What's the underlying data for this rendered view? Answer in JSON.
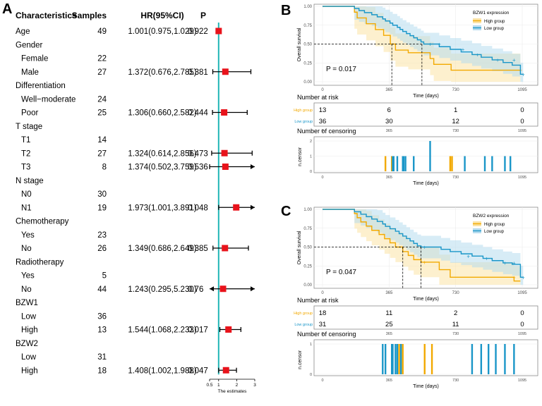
{
  "figure": {
    "panel_labels": [
      "A",
      "B",
      "C"
    ]
  },
  "colors": {
    "high": "#f2a900",
    "low": "#1a96c8",
    "high_band": "#fbe3a6",
    "low_band": "#b7dcef",
    "hr_box": "#e8131b",
    "ref_line": "#1fb5b5"
  },
  "chart_data": [
    {
      "type": "forest",
      "panel": "A",
      "headers": {
        "characteristic": "Characteristics",
        "samples": "Samples",
        "hr": "HR(95%CI)",
        "p": "P"
      },
      "xaxis": {
        "label": "The estimates",
        "ticks": [
          "0.5",
          "1",
          "2",
          "3"
        ],
        "tick_values": [
          0.5,
          1,
          2,
          3
        ],
        "reference": 1
      },
      "rows": [
        {
          "label": "Age",
          "indent": 0,
          "samples": "49",
          "hr_text": "1.001(0.975,1.029)",
          "p": "0.922",
          "hr": 1.001,
          "lo": 0.975,
          "hi": 1.029
        },
        {
          "label": "Gender",
          "indent": 0
        },
        {
          "label": "Female",
          "indent": 1,
          "samples": "22"
        },
        {
          "label": "Male",
          "indent": 1,
          "samples": "27",
          "hr_text": "1.372(0.676,2.785)",
          "p": "0.381",
          "hr": 1.372,
          "lo": 0.676,
          "hi": 2.785
        },
        {
          "label": "Differentiation",
          "indent": 0
        },
        {
          "label": "Well−moderate",
          "indent": 1,
          "samples": "24"
        },
        {
          "label": "Poor",
          "indent": 1,
          "samples": "25",
          "hr_text": "1.306(0.660,2.582)",
          "p": "0.444",
          "hr": 1.306,
          "lo": 0.66,
          "hi": 2.582
        },
        {
          "label": "T stage",
          "indent": 0
        },
        {
          "label": "T1",
          "indent": 1,
          "samples": "14"
        },
        {
          "label": "T2",
          "indent": 1,
          "samples": "27",
          "hr_text": "1.324(0.614,2.856)",
          "p": "0.473",
          "hr": 1.324,
          "lo": 0.614,
          "hi": 2.856
        },
        {
          "label": "T3",
          "indent": 1,
          "samples": "8",
          "hr_text": "1.374(0.502,3.759)",
          "p": "0.536",
          "hr": 1.374,
          "lo": 0.502,
          "hi": 3.759
        },
        {
          "label": "N stage",
          "indent": 0
        },
        {
          "label": "N0",
          "indent": 1,
          "samples": "30"
        },
        {
          "label": "N1",
          "indent": 1,
          "samples": "19",
          "hr_text": "1.973(1.001,3.891)",
          "p": "0.048",
          "hr": 1.973,
          "lo": 1.001,
          "hi": 3.891
        },
        {
          "label": "Chemotherapy",
          "indent": 0
        },
        {
          "label": "Yes",
          "indent": 1,
          "samples": "23"
        },
        {
          "label": "No",
          "indent": 1,
          "samples": "26",
          "hr_text": "1.349(0.686,2.649)",
          "p": "0.385",
          "hr": 1.349,
          "lo": 0.686,
          "hi": 2.649
        },
        {
          "label": "Radiotherapy",
          "indent": 0
        },
        {
          "label": "Yes",
          "indent": 1,
          "samples": "5"
        },
        {
          "label": "No",
          "indent": 1,
          "samples": "44",
          "hr_text": "1.243(0.295,5.230)",
          "p": "0.76",
          "hr": 1.243,
          "lo": 0.295,
          "hi": 5.23
        },
        {
          "label": "BZW1",
          "indent": 0
        },
        {
          "label": "Low",
          "indent": 1,
          "samples": "36"
        },
        {
          "label": "High",
          "indent": 1,
          "samples": "13",
          "hr_text": "1.544(1.068,2.233)",
          "p": "0.017",
          "hr": 1.544,
          "lo": 1.068,
          "hi": 2.233
        },
        {
          "label": "BZW2",
          "indent": 0
        },
        {
          "label": "Low",
          "indent": 1,
          "samples": "31"
        },
        {
          "label": "High",
          "indent": 1,
          "samples": "18",
          "hr_text": "1.408(1.002,1.988)",
          "p": "0.047",
          "hr": 1.408,
          "lo": 1.002,
          "hi": 1.988
        }
      ]
    },
    {
      "type": "kaplan-meier",
      "panel": "B",
      "ylabel": "Overall survival",
      "xlabel": "Time (days)",
      "xticks": [
        0,
        365,
        730,
        1095
      ],
      "yticks": [
        "0.00",
        "0.25",
        "0.50",
        "0.75",
        "1.00"
      ],
      "xlim": [
        0,
        1160
      ],
      "ylim": [
        0,
        1
      ],
      "legend_title": "BZW1 expression",
      "legend_items": [
        "High group",
        "Low group"
      ],
      "pvalue_label": "P = 0.017",
      "median_survival": [
        {
          "group": "High group",
          "time": 380
        },
        {
          "group": "Low group",
          "time": 545
        }
      ],
      "series": [
        {
          "name": "High group",
          "band": 0.22,
          "steps": [
            [
              0,
              1
            ],
            [
              175,
              1
            ],
            [
              175,
              0.923
            ],
            [
              190,
              0.846
            ],
            [
              240,
              0.769
            ],
            [
              290,
              0.692
            ],
            [
              335,
              0.615
            ],
            [
              372,
              0.5
            ],
            [
              388,
              0.5
            ],
            [
              400,
              0.42
            ],
            [
              470,
              0.385
            ],
            [
              590,
              0.308
            ],
            [
              610,
              0.231
            ],
            [
              705,
              0.154
            ],
            [
              1085,
              0.154
            ]
          ],
          "censor": [
            [
              1085,
              0.154
            ]
          ]
        },
        {
          "name": "Low group",
          "band": 0.15,
          "steps": [
            [
              0,
              1
            ],
            [
              175,
              1
            ],
            [
              175,
              0.972
            ],
            [
              200,
              0.944
            ],
            [
              230,
              0.917
            ],
            [
              270,
              0.889
            ],
            [
              300,
              0.861
            ],
            [
              330,
              0.833
            ],
            [
              345,
              0.806
            ],
            [
              370,
              0.778
            ],
            [
              385,
              0.75
            ],
            [
              410,
              0.722
            ],
            [
              425,
              0.694
            ],
            [
              440,
              0.667
            ],
            [
              460,
              0.639
            ],
            [
              480,
              0.611
            ],
            [
              500,
              0.583
            ],
            [
              520,
              0.556
            ],
            [
              540,
              0.528
            ],
            [
              555,
              0.5
            ],
            [
              575,
              0.5
            ],
            [
              640,
              0.465
            ],
            [
              700,
              0.43
            ],
            [
              760,
              0.395
            ],
            [
              820,
              0.36
            ],
            [
              870,
              0.325
            ],
            [
              930,
              0.29
            ],
            [
              990,
              0.255
            ],
            [
              1040,
              0.22
            ],
            [
              1085,
              0.1
            ],
            [
              1100,
              0.1
            ]
          ],
          "censor": [
            [
              590,
              0.5
            ],
            [
              640,
              0.5
            ],
            [
              770,
              0.43
            ],
            [
              850,
              0.36
            ],
            [
              960,
              0.29
            ],
            [
              1050,
              0.29
            ],
            [
              1100,
              0.1
            ]
          ]
        }
      ],
      "risk_table": {
        "title": "Number at risk",
        "rows": [
          {
            "name": "High group",
            "values": [
              "13",
              "6",
              "1",
              "0"
            ]
          },
          {
            "name": "Low group",
            "values": [
              "36",
              "30",
              "12",
              "0"
            ]
          }
        ]
      },
      "censor_plot": {
        "title": "Number of censoring",
        "ylabel": "n.censor",
        "yticks": [
          "0",
          "1",
          "2"
        ],
        "bars": [
          {
            "group": "High",
            "t": 345,
            "n": 1
          },
          {
            "group": "High",
            "t": 380,
            "n": 1
          },
          {
            "group": "High",
            "t": 700,
            "n": 1
          },
          {
            "group": "High",
            "t": 710,
            "n": 1
          },
          {
            "group": "Low",
            "t": 385,
            "n": 1
          },
          {
            "group": "Low",
            "t": 390,
            "n": 1
          },
          {
            "group": "Low",
            "t": 410,
            "n": 1
          },
          {
            "group": "Low",
            "t": 440,
            "n": 1
          },
          {
            "group": "Low",
            "t": 445,
            "n": 1
          },
          {
            "group": "Low",
            "t": 455,
            "n": 1
          },
          {
            "group": "Low",
            "t": 500,
            "n": 1
          },
          {
            "group": "Low",
            "t": 590,
            "n": 2
          },
          {
            "group": "Low",
            "t": 780,
            "n": 1
          },
          {
            "group": "Low",
            "t": 890,
            "n": 1
          },
          {
            "group": "Low",
            "t": 930,
            "n": 1
          },
          {
            "group": "Low",
            "t": 1000,
            "n": 1
          },
          {
            "group": "Low",
            "t": 1030,
            "n": 1
          }
        ]
      }
    },
    {
      "type": "kaplan-meier",
      "panel": "C",
      "ylabel": "Overall survival",
      "xlabel": "Time (days)",
      "xticks": [
        0,
        365,
        730,
        1095
      ],
      "yticks": [
        "0.00",
        "0.25",
        "0.50",
        "0.75",
        "1.00"
      ],
      "xlim": [
        0,
        1160
      ],
      "ylim": [
        0,
        1
      ],
      "legend_title": "BZW2 expression",
      "legend_items": [
        "High group",
        "Low group"
      ],
      "pvalue_label": "P = 0.047",
      "median_survival": [
        {
          "group": "High group",
          "time": 440
        },
        {
          "group": "Low group",
          "time": 540
        }
      ],
      "series": [
        {
          "name": "High group",
          "band": 0.2,
          "steps": [
            [
              0,
              1
            ],
            [
              175,
              1
            ],
            [
              175,
              0.944
            ],
            [
              190,
              0.889
            ],
            [
              210,
              0.833
            ],
            [
              240,
              0.778
            ],
            [
              270,
              0.722
            ],
            [
              310,
              0.667
            ],
            [
              340,
              0.611
            ],
            [
              370,
              0.556
            ],
            [
              400,
              0.5
            ],
            [
              440,
              0.5
            ],
            [
              440,
              0.44
            ],
            [
              470,
              0.389
            ],
            [
              500,
              0.333
            ],
            [
              540,
              0.3
            ],
            [
              640,
              0.3
            ],
            [
              640,
              0.2
            ],
            [
              700,
              0.2
            ],
            [
              700,
              0.1
            ],
            [
              1050,
              0.1
            ],
            [
              1050,
              0.05
            ],
            [
              1085,
              0.05
            ]
          ],
          "censor": [
            [
              560,
              0.3
            ],
            [
              1050,
              0.1
            ]
          ]
        },
        {
          "name": "Low group",
          "band": 0.15,
          "steps": [
            [
              0,
              1
            ],
            [
              175,
              1
            ],
            [
              175,
              0.968
            ],
            [
              210,
              0.935
            ],
            [
              240,
              0.903
            ],
            [
              270,
              0.871
            ],
            [
              300,
              0.839
            ],
            [
              330,
              0.806
            ],
            [
              345,
              0.774
            ],
            [
              370,
              0.742
            ],
            [
              400,
              0.71
            ],
            [
              420,
              0.677
            ],
            [
              440,
              0.645
            ],
            [
              460,
              0.613
            ],
            [
              480,
              0.581
            ],
            [
              500,
              0.548
            ],
            [
              520,
              0.516
            ],
            [
              540,
              0.5
            ],
            [
              600,
              0.5
            ],
            [
              650,
              0.47
            ],
            [
              700,
              0.44
            ],
            [
              760,
              0.41
            ],
            [
              820,
              0.38
            ],
            [
              880,
              0.35
            ],
            [
              930,
              0.32
            ],
            [
              990,
              0.29
            ],
            [
              1040,
              0.27
            ],
            [
              1085,
              0.1
            ],
            [
              1100,
              0.1
            ]
          ],
          "censor": [
            [
              560,
              0.5
            ],
            [
              800,
              0.38
            ],
            [
              900,
              0.35
            ],
            [
              1000,
              0.29
            ],
            [
              1050,
              0.29
            ],
            [
              1100,
              0.1
            ]
          ]
        }
      ],
      "risk_table": {
        "title": "Number at risk",
        "rows": [
          {
            "name": "High group",
            "values": [
              "18",
              "11",
              "2",
              "0"
            ]
          },
          {
            "name": "Low group",
            "values": [
              "31",
              "25",
              "11",
              "0"
            ]
          }
        ]
      },
      "censor_plot": {
        "title": "Number of censoring",
        "ylabel": "n.censor",
        "yticks": [
          "0",
          "1"
        ],
        "bars": [
          {
            "group": "Low",
            "t": 330,
            "n": 1
          },
          {
            "group": "Low",
            "t": 345,
            "n": 1
          },
          {
            "group": "Low",
            "t": 380,
            "n": 1
          },
          {
            "group": "Low",
            "t": 385,
            "n": 1
          },
          {
            "group": "Low",
            "t": 400,
            "n": 1
          },
          {
            "group": "Low",
            "t": 410,
            "n": 1
          },
          {
            "group": "Low",
            "t": 430,
            "n": 1
          },
          {
            "group": "High",
            "t": 420,
            "n": 1
          },
          {
            "group": "High",
            "t": 440,
            "n": 1
          },
          {
            "group": "High",
            "t": 560,
            "n": 1
          },
          {
            "group": "High",
            "t": 600,
            "n": 1
          },
          {
            "group": "Low",
            "t": 820,
            "n": 1
          },
          {
            "group": "Low",
            "t": 870,
            "n": 1
          },
          {
            "group": "Low",
            "t": 910,
            "n": 1
          },
          {
            "group": "Low",
            "t": 950,
            "n": 1
          },
          {
            "group": "Low",
            "t": 1000,
            "n": 1
          },
          {
            "group": "Low",
            "t": 1050,
            "n": 1
          }
        ]
      }
    }
  ]
}
